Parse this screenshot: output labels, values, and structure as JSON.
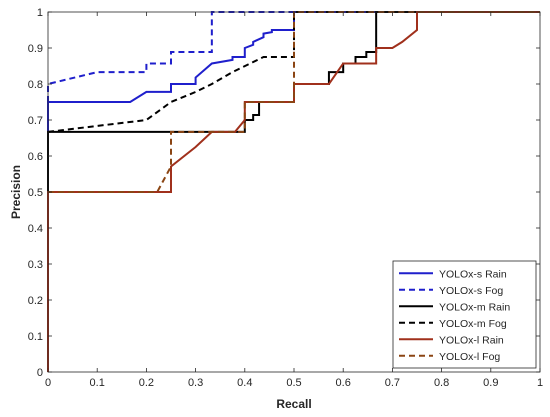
{
  "chart_data": {
    "type": "line",
    "title": "",
    "xlabel": "Recall",
    "ylabel": "Precision",
    "xlim": [
      0,
      1
    ],
    "ylim": [
      0,
      1
    ],
    "xticks": [
      "0",
      "0.1",
      "0.2",
      "0.3",
      "0.4",
      "0.5",
      "0.6",
      "0.7",
      "0.8",
      "0.9",
      "1"
    ],
    "yticks": [
      "0",
      "0.1",
      "0.2",
      "0.3",
      "0.4",
      "0.5",
      "0.6",
      "0.7",
      "0.8",
      "0.9",
      "1"
    ],
    "grid": false,
    "legend_position": "bottom-right",
    "series": [
      {
        "name": "YOLOx-s Rain",
        "color": "#1f1fcc",
        "dash": "solid",
        "x": [
          0,
          0,
          0.167,
          0.2,
          0.2,
          0.25,
          0.25,
          0.3,
          0.3,
          0.333,
          0.333,
          0.375,
          0.375,
          0.4,
          0.4,
          0.417,
          0.417,
          0.438,
          0.438,
          0.455,
          0.455,
          0.5,
          0.5,
          1
        ],
        "y": [
          0,
          0.75,
          0.75,
          0.778,
          0.778,
          0.778,
          0.8,
          0.8,
          0.818,
          0.857,
          0.857,
          0.867,
          0.875,
          0.875,
          0.9,
          0.909,
          0.917,
          0.93,
          0.94,
          0.944,
          0.95,
          0.95,
          1,
          1
        ]
      },
      {
        "name": "YOLOx-s Fog",
        "color": "#1f1fcc",
        "dash": "dashed",
        "x": [
          0,
          0,
          0.1,
          0.2,
          0.2,
          0.25,
          0.25,
          0.333,
          0.333,
          1
        ],
        "y": [
          0,
          0.8,
          0.833,
          0.833,
          0.857,
          0.857,
          0.889,
          0.889,
          1,
          1
        ]
      },
      {
        "name": "YOLOx-m Rain",
        "color": "#000000",
        "dash": "solid",
        "x": [
          0,
          0,
          0.4,
          0.4,
          0.417,
          0.417,
          0.429,
          0.429,
          0.5,
          0.5,
          0.571,
          0.571,
          0.6,
          0.6,
          0.625,
          0.625,
          0.647,
          0.647,
          0.667,
          0.667,
          1
        ],
        "y": [
          0,
          0.667,
          0.667,
          0.7,
          0.7,
          0.714,
          0.714,
          0.75,
          0.75,
          0.8,
          0.8,
          0.833,
          0.833,
          0.857,
          0.857,
          0.875,
          0.875,
          0.889,
          0.889,
          1,
          1
        ]
      },
      {
        "name": "YOLOx-m Fog",
        "color": "#000000",
        "dash": "dashed",
        "x": [
          0,
          0.2,
          0.2,
          0.25,
          0.25,
          0.3,
          0.3,
          0.333,
          0.333,
          0.375,
          0.375,
          0.438,
          0.438,
          0.5,
          0.5,
          1
        ],
        "y": [
          0.667,
          0.7,
          0.7,
          0.75,
          0.75,
          0.778,
          0.778,
          0.8,
          0.8,
          0.833,
          0.833,
          0.875,
          0.875,
          0.875,
          1,
          1
        ]
      },
      {
        "name": "YOLOx-l Rain",
        "color": "#a0301c",
        "dash": "solid",
        "x": [
          0,
          0,
          0.25,
          0.25,
          0.3,
          0.333,
          0.333,
          0.38,
          0.4,
          0.4,
          0.5,
          0.5,
          0.571,
          0.6,
          0.6,
          0.667,
          0.667,
          0.7,
          0.72,
          0.75,
          0.75,
          1
        ],
        "y": [
          0,
          0.5,
          0.5,
          0.571,
          0.625,
          0.667,
          0.667,
          0.667,
          0.7,
          0.75,
          0.75,
          0.8,
          0.8,
          0.857,
          0.857,
          0.857,
          0.9,
          0.9,
          0.917,
          0.95,
          1,
          1
        ]
      },
      {
        "name": "YOLOx-l Fog",
        "color": "#8b4513",
        "dash": "dashed",
        "x": [
          0,
          0.222,
          0.25,
          0.25,
          0.4,
          0.4,
          0.5,
          0.5,
          1
        ],
        "y": [
          0.5,
          0.5,
          0.571,
          0.667,
          0.667,
          0.75,
          0.75,
          1,
          1
        ]
      }
    ]
  }
}
